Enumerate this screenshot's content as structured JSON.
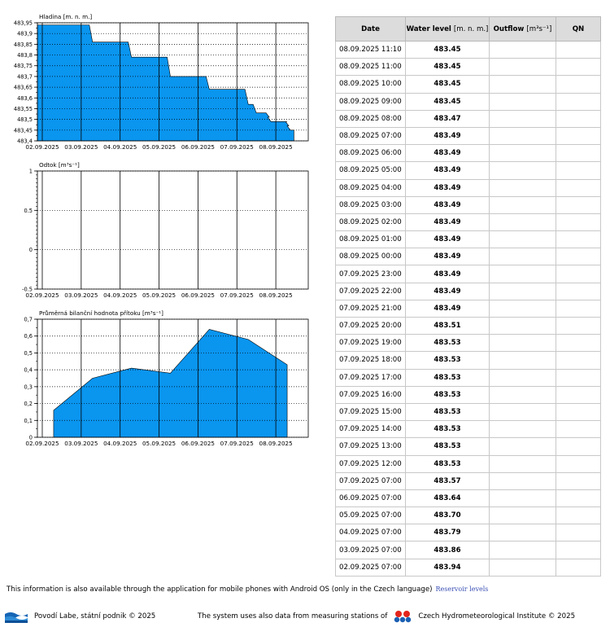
{
  "charts": {
    "water_level": {
      "title": "Hladina [m. n. m.]",
      "y_ticks": [
        "483,95",
        "483,9",
        "483,85",
        "483,8",
        "483,75",
        "483,7",
        "483,65",
        "483,6",
        "483,55",
        "483,5",
        "483,45",
        "483,4"
      ],
      "x_ticks": [
        "02.09.2025",
        "03.09.2025",
        "04.09.2025",
        "05.09.2025",
        "06.09.2025",
        "07.09.2025",
        "08.09.2025"
      ]
    },
    "outflow": {
      "title": "Odtok [m³s⁻¹]",
      "y_ticks": [
        "1",
        "0.5",
        "0",
        "-0.5"
      ],
      "x_ticks": [
        "02.09.2025",
        "03.09.2025",
        "04.09.2025",
        "05.09.2025",
        "06.09.2025",
        "07.09.2025",
        "08.09.2025"
      ]
    },
    "inflow": {
      "title": "Průměrná bilanční hodnota přítoku [m³s⁻¹]",
      "y_ticks": [
        "0,7",
        "0,6",
        "0,5",
        "0,4",
        "0,3",
        "0,2",
        "0,1",
        "0"
      ],
      "x_ticks": [
        "02.09.2025",
        "03.09.2025",
        "04.09.2025",
        "05.09.2025",
        "06.09.2025",
        "07.09.2025",
        "08.09.2025"
      ]
    },
    "colors": {
      "fill": "#0a95ef",
      "axis": "#000000",
      "grid": "#000000"
    }
  },
  "chart_data": [
    {
      "type": "area",
      "title": "Hladina [m. n. m.]",
      "ylabel": "Hladina [m. n. m.]",
      "ylim": [
        483.4,
        483.95
      ],
      "x": [
        "02.09.2025 07:00",
        "03.09.2025 07:00",
        "04.09.2025 07:00",
        "05.09.2025 07:00",
        "06.09.2025 07:00",
        "07.09.2025 07:00",
        "07.09.2025 12:00",
        "07.09.2025 20:00",
        "07.09.2025 21:00",
        "08.09.2025 07:00",
        "08.09.2025 08:00",
        "08.09.2025 09:00",
        "08.09.2025 11:10"
      ],
      "values": [
        483.94,
        483.86,
        483.79,
        483.7,
        483.64,
        483.57,
        483.53,
        483.51,
        483.49,
        483.49,
        483.47,
        483.45,
        483.45
      ]
    },
    {
      "type": "line",
      "title": "Odtok [m³s⁻¹]",
      "ylabel": "Odtok [m³s⁻¹]",
      "ylim": [
        -0.5,
        1
      ],
      "x": [],
      "values": []
    },
    {
      "type": "area",
      "title": "Průměrná bilanční hodnota přítoku [m³s⁻¹]",
      "ylabel": "Průměrná bilanční hodnota přítoku [m³s⁻¹]",
      "ylim": [
        0,
        0.7
      ],
      "x": [
        "02.09.2025 07:00",
        "03.09.2025 07:00",
        "04.09.2025 07:00",
        "05.09.2025 07:00",
        "06.09.2025 07:00",
        "07.09.2025 07:00",
        "08.09.2025 07:00"
      ],
      "values": [
        0.16,
        0.35,
        0.41,
        0.38,
        0.64,
        0.58,
        0.43
      ]
    }
  ],
  "table": {
    "headers": {
      "date": "Date",
      "water_level": "Water level",
      "water_level_unit": "[m. n. m.]",
      "outflow": "Outflow",
      "outflow_unit": "[m³s⁻¹]",
      "qn": "QN"
    },
    "rows": [
      {
        "date": "08.09.2025 11:10",
        "level": "483.45"
      },
      {
        "date": "08.09.2025 11:00",
        "level": "483.45"
      },
      {
        "date": "08.09.2025 10:00",
        "level": "483.45"
      },
      {
        "date": "08.09.2025 09:00",
        "level": "483.45"
      },
      {
        "date": "08.09.2025 08:00",
        "level": "483.47"
      },
      {
        "date": "08.09.2025 07:00",
        "level": "483.49"
      },
      {
        "date": "08.09.2025 06:00",
        "level": "483.49"
      },
      {
        "date": "08.09.2025 05:00",
        "level": "483.49"
      },
      {
        "date": "08.09.2025 04:00",
        "level": "483.49"
      },
      {
        "date": "08.09.2025 03:00",
        "level": "483.49"
      },
      {
        "date": "08.09.2025 02:00",
        "level": "483.49"
      },
      {
        "date": "08.09.2025 01:00",
        "level": "483.49"
      },
      {
        "date": "08.09.2025 00:00",
        "level": "483.49"
      },
      {
        "date": "07.09.2025 23:00",
        "level": "483.49"
      },
      {
        "date": "07.09.2025 22:00",
        "level": "483.49"
      },
      {
        "date": "07.09.2025 21:00",
        "level": "483.49"
      },
      {
        "date": "07.09.2025 20:00",
        "level": "483.51"
      },
      {
        "date": "07.09.2025 19:00",
        "level": "483.53"
      },
      {
        "date": "07.09.2025 18:00",
        "level": "483.53"
      },
      {
        "date": "07.09.2025 17:00",
        "level": "483.53"
      },
      {
        "date": "07.09.2025 16:00",
        "level": "483.53"
      },
      {
        "date": "07.09.2025 15:00",
        "level": "483.53"
      },
      {
        "date": "07.09.2025 14:00",
        "level": "483.53"
      },
      {
        "date": "07.09.2025 13:00",
        "level": "483.53"
      },
      {
        "date": "07.09.2025 12:00",
        "level": "483.53"
      },
      {
        "date": "07.09.2025 07:00",
        "level": "483.57"
      },
      {
        "date": "06.09.2025 07:00",
        "level": "483.64"
      },
      {
        "date": "05.09.2025 07:00",
        "level": "483.70"
      },
      {
        "date": "04.09.2025 07:00",
        "level": "483.79"
      },
      {
        "date": "03.09.2025 07:00",
        "level": "483.86"
      },
      {
        "date": "02.09.2025 07:00",
        "level": "483.94"
      }
    ]
  },
  "info": {
    "text": "This information is also available through the application for mobile phones with Android OS (only in the Czech language)",
    "link_label": "Reservoir levels"
  },
  "footer": {
    "left_text": "Povodí Labe, státní podnik © 2025",
    "right_text_before": "The system uses also data from measuring stations of",
    "right_text_after": "Czech Hydrometeorological Institute © 2025",
    "left_logo_icon": "povodi-labe-logo-icon",
    "right_logo_icon": "chmi-logo-icon"
  }
}
